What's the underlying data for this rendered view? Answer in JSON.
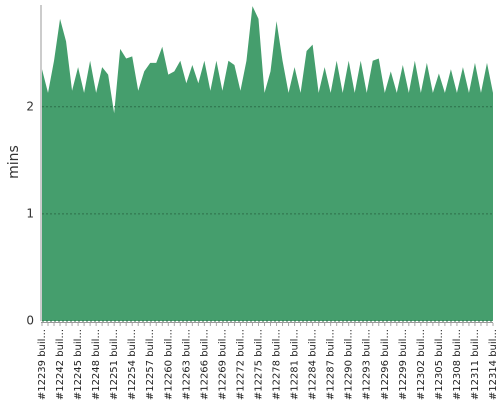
{
  "chart_data": {
    "type": "area",
    "ylabel": "mins",
    "categories": [
      "#12239 buil...",
      null,
      null,
      "#12242 buil...",
      null,
      null,
      "#12245 buil...",
      null,
      null,
      "#12248 buil...",
      null,
      null,
      "#12251 buil...",
      null,
      null,
      "#12254 buil...",
      null,
      null,
      "#12257 buil...",
      null,
      null,
      "#12260 buil...",
      null,
      null,
      "#12263 buil...",
      null,
      null,
      "#12266 buil...",
      null,
      null,
      "#12269 buil...",
      null,
      null,
      "#12272 buil...",
      null,
      null,
      "#12275 buil...",
      null,
      null,
      "#12278 buil...",
      null,
      null,
      "#12281 buil...",
      null,
      null,
      "#12284 buil...",
      null,
      null,
      "#12287 buil...",
      null,
      null,
      "#12290 buil...",
      null,
      null,
      "#12293 buil...",
      null,
      null,
      "#12296 buil...",
      null,
      null,
      "#12299 buil...",
      null,
      null,
      "#12302 buil...",
      null,
      null,
      "#12305 buil...",
      null,
      null,
      "#12308 buil...",
      null,
      null,
      "#12311 buil...",
      null,
      null,
      "#12314 buil..."
    ],
    "values": [
      2.35,
      2.13,
      2.43,
      2.82,
      2.61,
      2.15,
      2.37,
      2.13,
      2.43,
      2.13,
      2.37,
      2.3,
      1.94,
      2.54,
      2.45,
      2.47,
      2.15,
      2.33,
      2.41,
      2.41,
      2.56,
      2.3,
      2.33,
      2.43,
      2.22,
      2.39,
      2.22,
      2.43,
      2.15,
      2.43,
      2.15,
      2.43,
      2.39,
      2.15,
      2.43,
      2.94,
      2.82,
      2.13,
      2.33,
      2.8,
      2.43,
      2.13,
      2.37,
      2.13,
      2.52,
      2.58,
      2.13,
      2.37,
      2.13,
      2.43,
      2.13,
      2.43,
      2.13,
      2.43,
      2.13,
      2.43,
      2.45,
      2.13,
      2.33,
      2.13,
      2.39,
      2.13,
      2.43,
      2.13,
      2.41,
      2.13,
      2.31,
      2.13,
      2.35,
      2.13,
      2.37,
      2.13,
      2.41,
      2.13,
      2.41,
      2.13
    ],
    "color": "#459e6d",
    "ylim": [
      0,
      2.95
    ],
    "yticks": [
      0,
      1,
      2
    ],
    "grid": true
  }
}
